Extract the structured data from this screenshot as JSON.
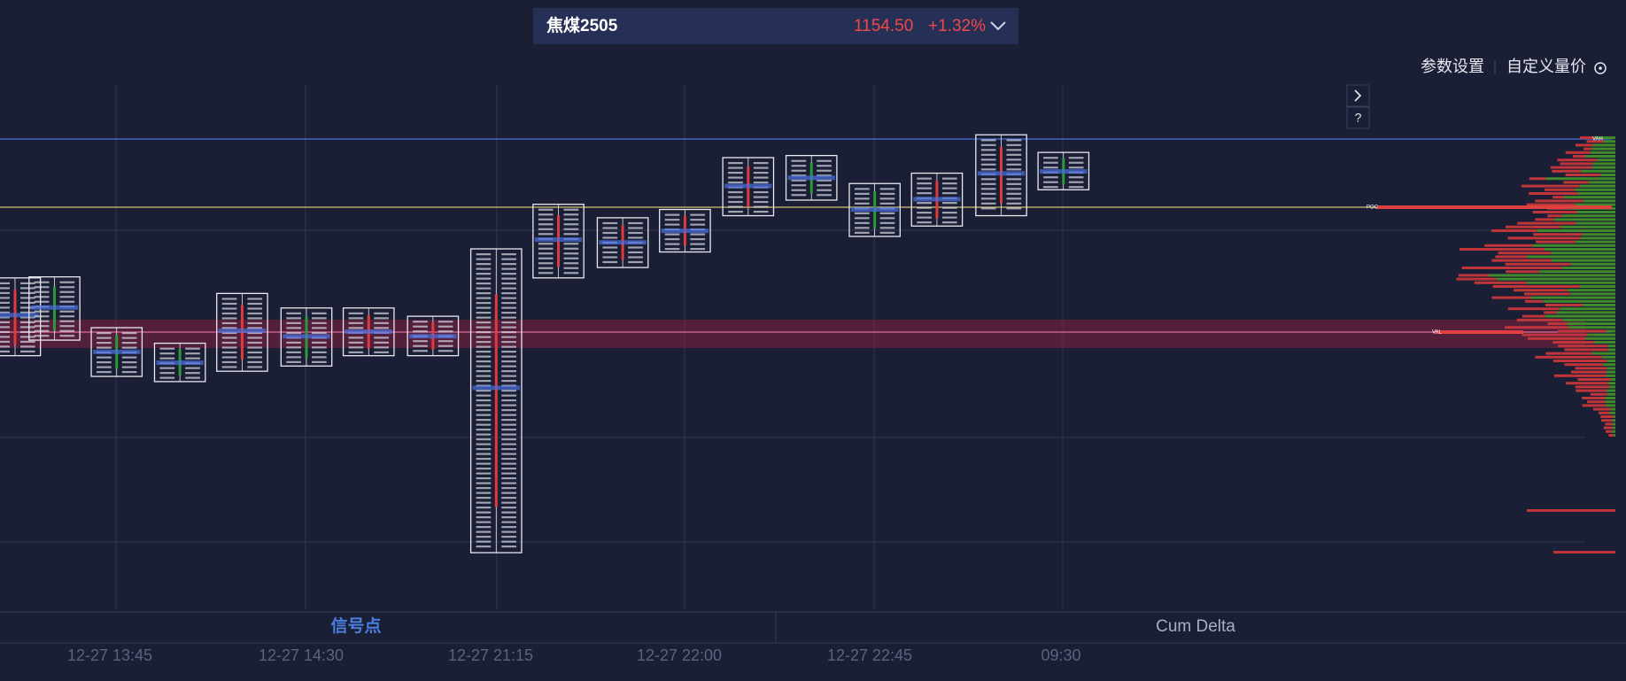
{
  "header": {
    "symbol": "焦煤2505",
    "price": "1154.50",
    "change": "+1.32%"
  },
  "toolbar": {
    "settings": "参数设置",
    "custom_price": "自定义量价",
    "help": "?"
  },
  "profile_labels": {
    "vah": "VAH",
    "poc": "POC",
    "val": "VAL"
  },
  "tabs": [
    "信号点",
    "Cum Delta"
  ],
  "time_axis": [
    "12-27 13:45",
    "12-27 14:30",
    "12-27 21:15",
    "12-27 22:00",
    "12-27 22:45",
    "09:30"
  ]
}
